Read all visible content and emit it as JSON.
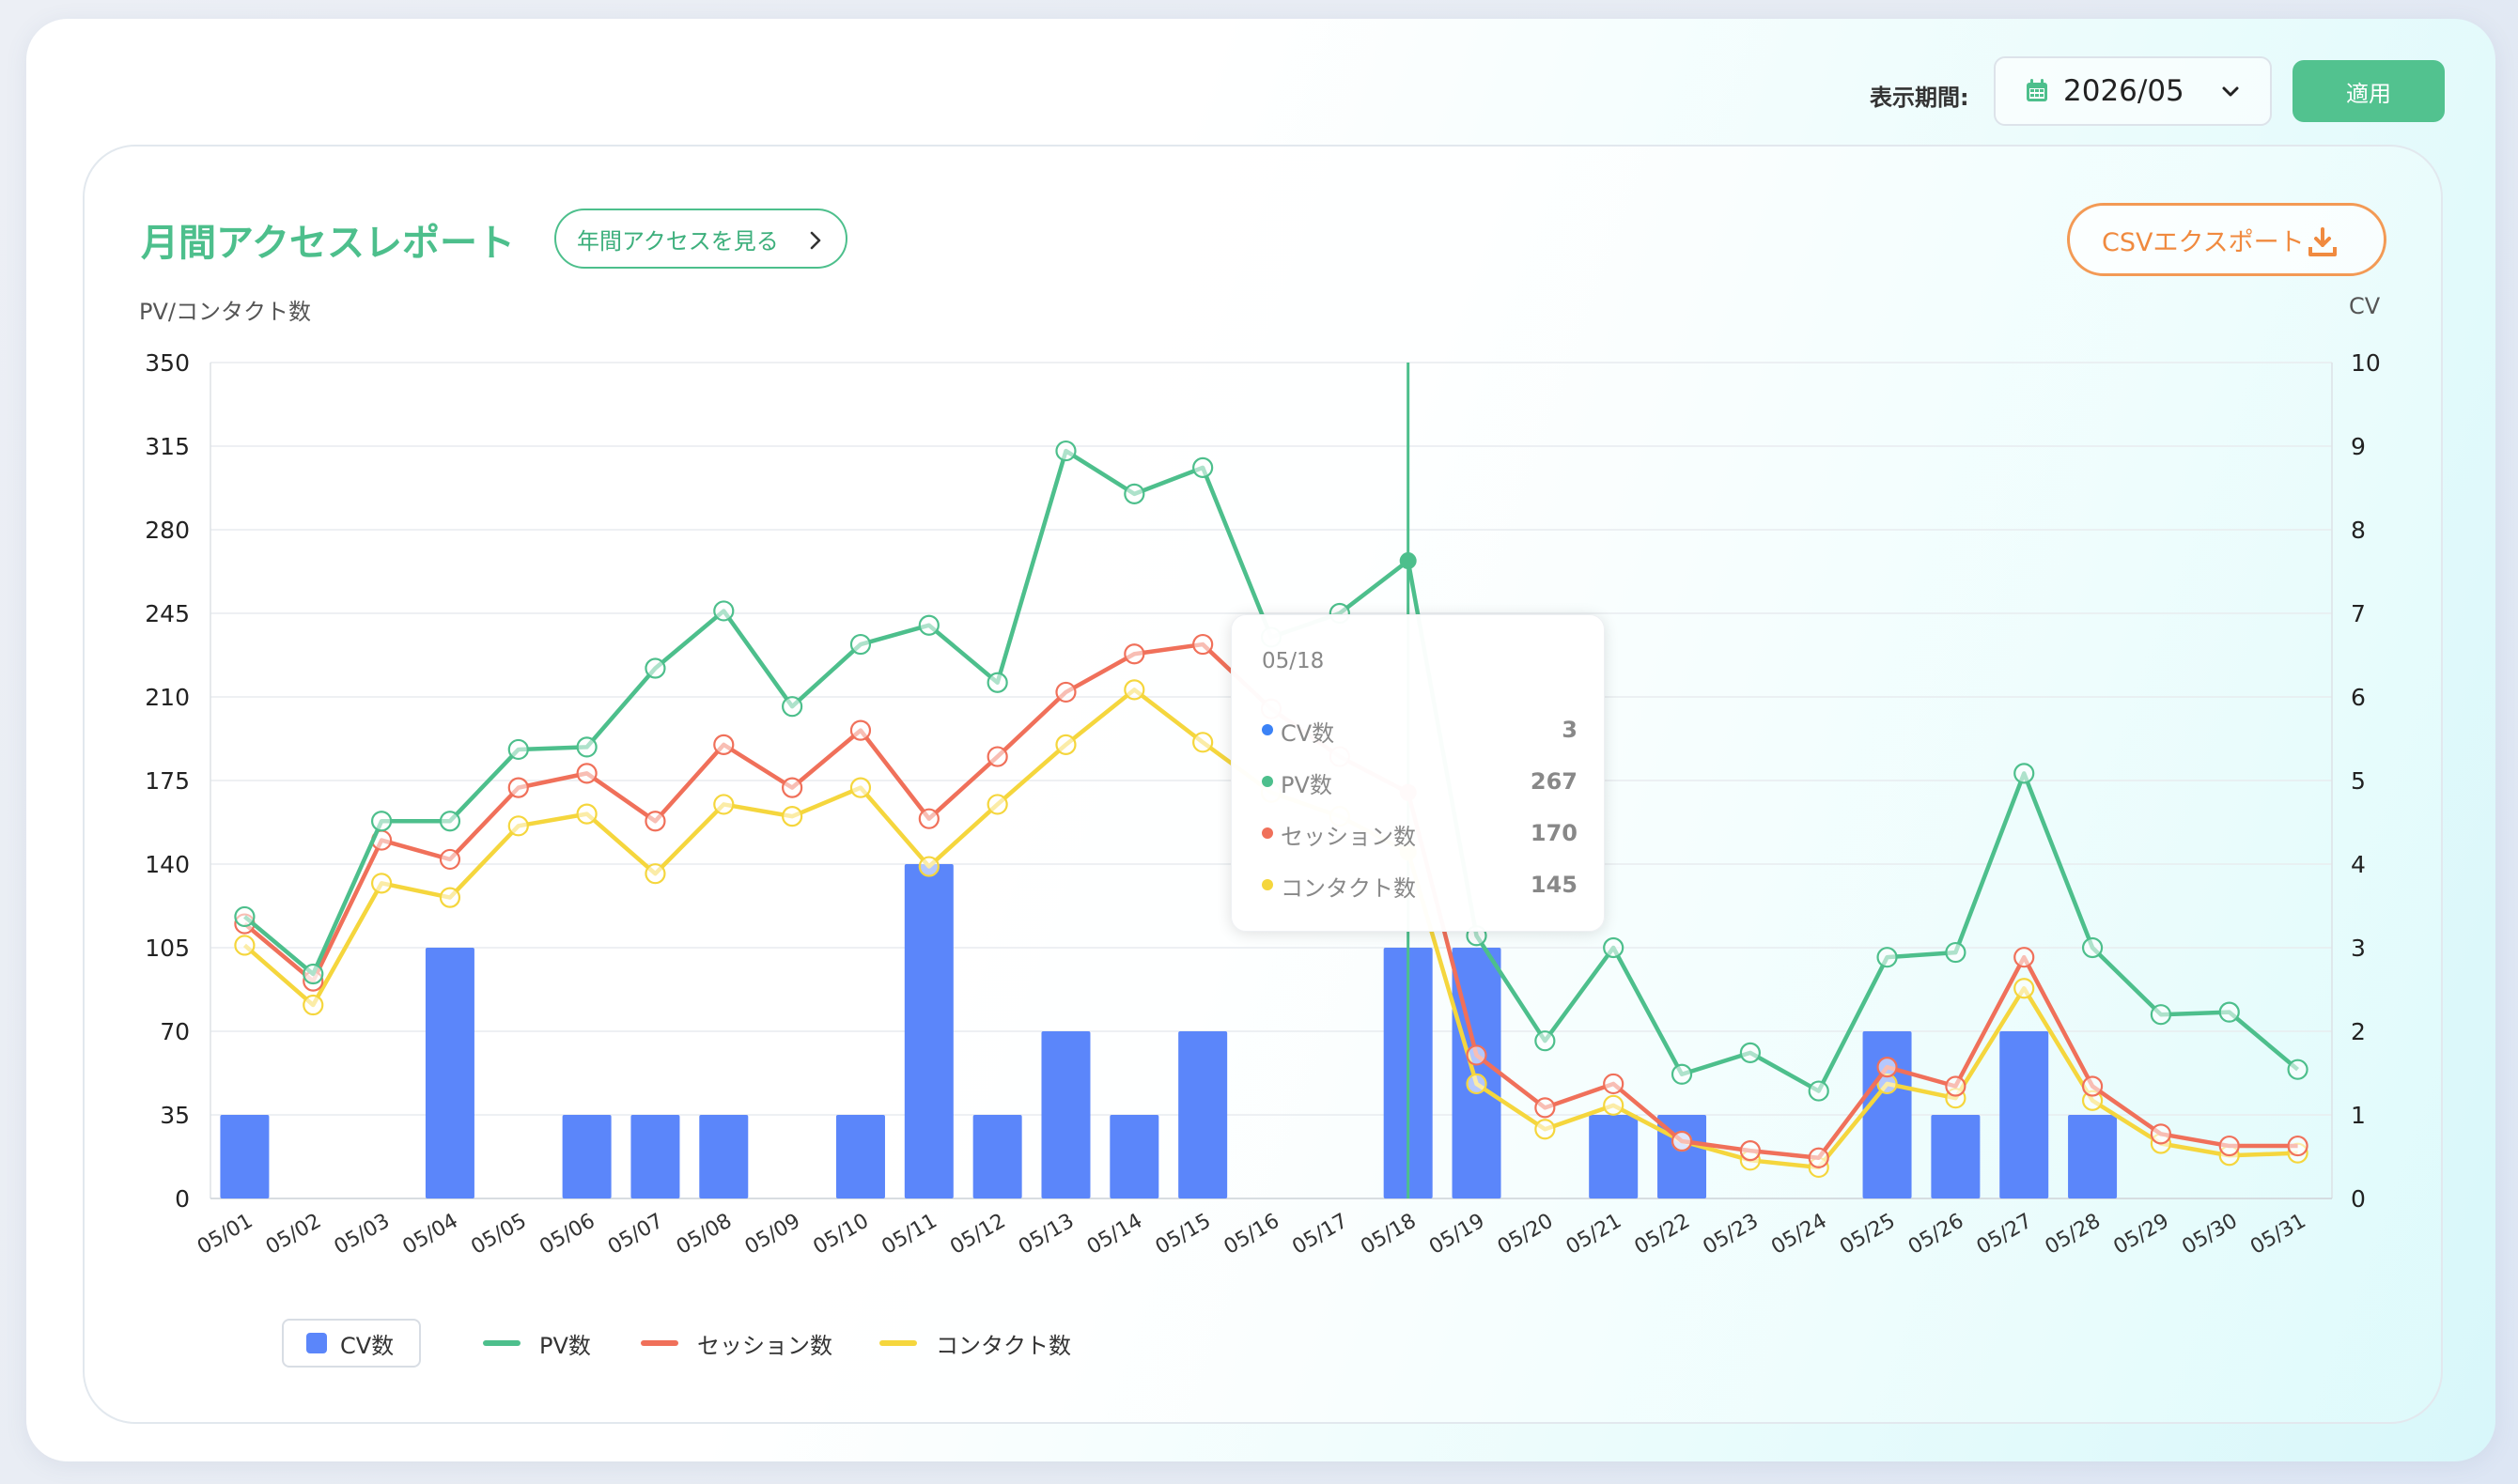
{
  "header": {
    "period_label": "表示期間:",
    "period_value": "2026/05",
    "apply_label": "適用"
  },
  "report": {
    "title": "月間アクセスレポート",
    "year_link": "年間アクセスを見る",
    "csv_label": "CSVエクスポート",
    "left_axis_title": "PV/コンタクト数",
    "right_axis_title": "CV"
  },
  "tooltip": {
    "date": "05/18",
    "rows": [
      {
        "name": "CV数",
        "value": "3",
        "color": "#3b82f6"
      },
      {
        "name": "PV数",
        "value": "267",
        "color": "#4dbf8c"
      },
      {
        "name": "セッション数",
        "value": "170",
        "color": "#f0705a"
      },
      {
        "name": "コンタクト数",
        "value": "145",
        "color": "#f5d63d"
      }
    ]
  },
  "legend": {
    "cv": "CV数",
    "pv": "PV数",
    "session": "セッション数",
    "contact": "コンタクト数"
  },
  "chart_data": {
    "type": "bar+line",
    "categories": [
      "05/01",
      "05/02",
      "05/03",
      "05/04",
      "05/05",
      "05/06",
      "05/07",
      "05/08",
      "05/09",
      "05/10",
      "05/11",
      "05/12",
      "05/13",
      "05/14",
      "05/15",
      "05/16",
      "05/17",
      "05/18",
      "05/19",
      "05/20",
      "05/21",
      "05/22",
      "05/23",
      "05/24",
      "05/25",
      "05/26",
      "05/27",
      "05/28",
      "05/29",
      "05/30",
      "05/31"
    ],
    "left_ylim": [
      0,
      350
    ],
    "left_ticks": [
      0,
      35,
      70,
      105,
      140,
      175,
      210,
      245,
      280,
      315,
      350
    ],
    "right_ylim": [
      0,
      10
    ],
    "right_ticks": [
      0,
      1,
      2,
      3,
      4,
      5,
      6,
      7,
      8,
      9,
      10
    ],
    "highlight": "05/18",
    "grid": true,
    "legend_position": "bottom-left",
    "series": [
      {
        "name": "CV数",
        "type": "bar",
        "axis": "right",
        "color": "#5b86fa",
        "values": [
          1,
          0,
          0,
          3,
          0,
          1,
          1,
          1,
          0,
          1,
          4,
          1,
          2,
          1,
          2,
          0,
          0,
          3,
          3,
          0,
          1,
          1,
          0,
          0,
          2,
          1,
          2,
          1,
          0,
          0,
          0
        ]
      },
      {
        "name": "PV数",
        "type": "line",
        "axis": "left",
        "color": "#4dbf8c",
        "values": [
          118,
          94,
          158,
          158,
          188,
          189,
          222,
          246,
          206,
          232,
          240,
          216,
          313,
          295,
          306,
          235,
          245,
          267,
          110,
          66,
          105,
          52,
          61,
          45,
          101,
          103,
          178,
          105,
          77,
          78,
          54
        ]
      },
      {
        "name": "セッション数",
        "type": "line",
        "axis": "left",
        "color": "#f0705a",
        "values": [
          115,
          91,
          150,
          142,
          172,
          178,
          158,
          190,
          172,
          196,
          159,
          185,
          212,
          228,
          232,
          205,
          185,
          170,
          60,
          38,
          48,
          24,
          20,
          17,
          55,
          47,
          101,
          47,
          27,
          22,
          22
        ]
      },
      {
        "name": "コンタクト数",
        "type": "line",
        "axis": "left",
        "color": "#f5d63d",
        "values": [
          106,
          81,
          132,
          126,
          156,
          161,
          136,
          165,
          160,
          172,
          139,
          165,
          190,
          213,
          191,
          170,
          160,
          145,
          48,
          29,
          39,
          24,
          16,
          13,
          48,
          42,
          88,
          41,
          23,
          18,
          19
        ]
      }
    ]
  }
}
